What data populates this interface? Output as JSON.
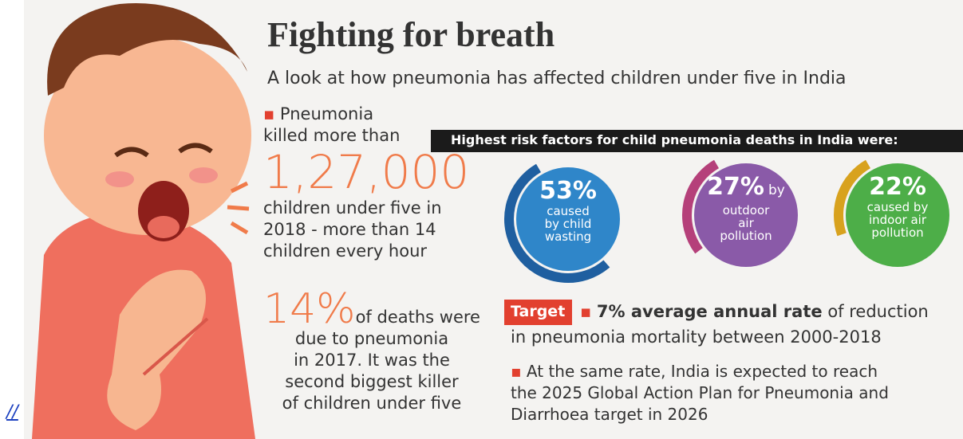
{
  "header": {
    "title": "Fighting for breath",
    "subtitle": "A look at how pneumonia has affected children under five in India"
  },
  "left": {
    "block1": {
      "lead": [
        "Pneumonia",
        "killed more than"
      ],
      "figure": "1,27,000",
      "text": [
        "children under five in",
        "2018 - more than 14",
        "children every hour"
      ]
    },
    "block2": {
      "figure": "14%",
      "text": [
        "of deaths were",
        "due to pneumonia",
        "in 2017. It was the",
        "second biggest killer",
        "of children under five"
      ]
    }
  },
  "risk_factors": {
    "heading": "Highest risk factors for child pneumonia deaths in India were:",
    "items": [
      {
        "value": 53,
        "label": "53%",
        "description": [
          "caused",
          "by child",
          "wasting"
        ],
        "color": "#2f86c9",
        "ring": "#1f5fa0"
      },
      {
        "value": 27,
        "label": "27%",
        "suffix": "by",
        "description": [
          "outdoor",
          "air",
          "pollution"
        ],
        "color": "#8a5aa8",
        "ring": "#b5407a"
      },
      {
        "value": 22,
        "label": "22%",
        "description": [
          "caused by",
          "indoor air",
          "pollution"
        ],
        "color": "#4dae48",
        "ring": "#d8a21e"
      }
    ]
  },
  "target": {
    "tag": "Target",
    "bold": "7% average annual rate",
    "rest": "of reduction",
    "line2": "in pneumonia mortality between 2000-2018",
    "note": [
      "At the same rate, India is expected to reach",
      "the 2025 Global Action Plan for Pneumonia and",
      "Diarrhoea target in 2026"
    ]
  },
  "footer_link": "//"
}
